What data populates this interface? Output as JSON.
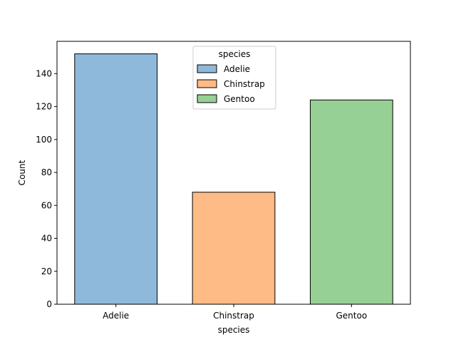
{
  "chart_data": {
    "type": "bar",
    "xlabel": "species",
    "ylabel": "Count",
    "categories": [
      "Adelie",
      "Chinstrap",
      "Gentoo"
    ],
    "values": [
      152,
      68,
      124
    ],
    "colors": [
      "#8fb9da",
      "#ffbb85",
      "#97d095"
    ],
    "edge_color": "#000000",
    "ylim": [
      0,
      159.6
    ],
    "yticks": [
      0,
      20,
      40,
      60,
      80,
      100,
      120,
      140
    ],
    "grid": false,
    "legend": {
      "title": "species",
      "placement": "upper-center",
      "entries": [
        "Adelie",
        "Chinstrap",
        "Gentoo"
      ]
    }
  }
}
